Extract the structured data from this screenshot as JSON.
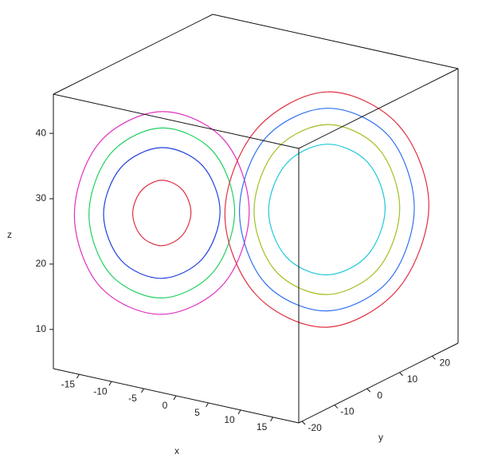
{
  "chart_data": {
    "type": "line3d",
    "xlabel": "x",
    "ylabel": "y",
    "zlabel": "z",
    "xlim": [
      -19,
      19
    ],
    "ylim": [
      -21,
      28
    ],
    "zlim": [
      4,
      46
    ],
    "xticks": [
      -15,
      -10,
      -5,
      0,
      5,
      10,
      15
    ],
    "yticks": [
      -20,
      -10,
      0,
      10,
      20
    ],
    "zticks": [
      10,
      20,
      30,
      40
    ],
    "series": [
      {
        "color": "#e03040",
        "x": [
          -5.5,
          -6.4,
          -8.5,
          -10.6,
          -11.5,
          -10.6,
          -8.5,
          -6.4
        ],
        "y": [
          -5.5,
          -6.4,
          -8.5,
          -10.6,
          -11.5,
          -10.6,
          -8.5,
          -6.4
        ],
        "z": [
          27,
          30.5,
          32,
          30.5,
          27,
          23.5,
          22,
          23.5
        ]
      },
      {
        "color": "#2040e0",
        "x": [
          -2.5,
          -4.3,
          -8.5,
          -12.7,
          -14.5,
          -12.7,
          -8.5,
          -4.3
        ],
        "y": [
          -2.5,
          -4.3,
          -8.5,
          -12.7,
          -14.5,
          -12.7,
          -8.5,
          -4.3
        ],
        "z": [
          27,
          34.1,
          37,
          34.1,
          27,
          19.9,
          17,
          19.9
        ]
      },
      {
        "color": "#20d060",
        "x": [
          -1,
          -3.2,
          -8.5,
          -13.8,
          -16,
          -13.8,
          -8.5,
          -3.2
        ],
        "y": [
          -1,
          -3.2,
          -8.5,
          -13.8,
          -16,
          -13.8,
          -8.5,
          -3.2
        ],
        "z": [
          27,
          36.2,
          40,
          36.2,
          27,
          17.8,
          14,
          17.8
        ]
      },
      {
        "color": "#e030c0",
        "x": [
          0.5,
          -2.1,
          -8.5,
          -14.9,
          -17.5,
          -14.9,
          -8.5,
          -2.1
        ],
        "y": [
          0.5,
          -2.1,
          -8.5,
          -14.9,
          -17.5,
          -14.9,
          -8.5,
          -2.1
        ],
        "z": [
          27,
          38,
          42.5,
          38,
          27,
          16,
          11.5,
          16
        ]
      },
      {
        "color": "#20c8d8",
        "x": [
          14.5,
          12.7,
          8.5,
          4.3,
          2.5,
          4.3,
          8.5,
          12.7
        ],
        "y": [
          14.5,
          12.7,
          8.5,
          4.3,
          2.5,
          4.3,
          8.5,
          12.7
        ],
        "z": [
          27,
          34.1,
          37,
          34.1,
          27,
          19.9,
          17,
          19.9
        ]
      },
      {
        "color": "#a0c020",
        "x": [
          16,
          13.8,
          8.5,
          3.2,
          1,
          3.2,
          8.5,
          13.8
        ],
        "y": [
          16,
          13.8,
          8.5,
          3.2,
          1,
          3.2,
          8.5,
          13.8
        ],
        "z": [
          27,
          36.2,
          40,
          36.2,
          27,
          17.8,
          14,
          17.8
        ]
      },
      {
        "color": "#3070f0",
        "x": [
          17.5,
          14.9,
          8.5,
          2.1,
          -0.5,
          2.1,
          8.5,
          14.9
        ],
        "y": [
          17.5,
          14.9,
          8.5,
          2.1,
          -0.5,
          2.1,
          8.5,
          14.9
        ],
        "z": [
          27,
          38,
          42.5,
          38,
          27,
          16,
          11.5,
          16
        ]
      },
      {
        "color": "#e03040",
        "x": [
          18.5,
          15.6,
          8.5,
          1.4,
          -1.5,
          1.4,
          8.5,
          15.6
        ],
        "y": [
          20,
          16.4,
          8.5,
          0.6,
          -3,
          0.6,
          8.5,
          16.4
        ],
        "z": [
          27,
          39.5,
          45,
          39.5,
          27,
          14.5,
          9,
          14.5
        ]
      }
    ]
  }
}
